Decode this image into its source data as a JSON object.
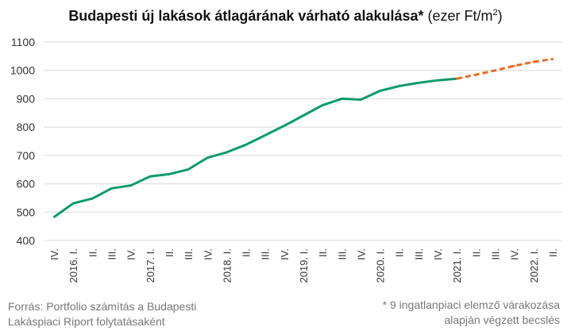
{
  "title": {
    "bold": "Budapesti új lakások átlagárának várható alakulása*",
    "unit_prefix": " (ezer Ft/m",
    "unit_sup": "2",
    "unit_suffix": ")"
  },
  "source": {
    "line1": "Forrás: Portfolio számítás a Budapesti",
    "line2": "Lakáspiaci Riport folytatásaként"
  },
  "footnote": {
    "line1": "* 9 ingatlanpiaci elemző várakozása",
    "line2": "alapján végzett becslés"
  },
  "colors": {
    "actual": "#0a9c6b",
    "forecast": "#ee6a22",
    "grid": "#d9d9d9"
  },
  "chart_data": {
    "type": "line",
    "categories": [
      "IV.",
      "2016. I.",
      "II.",
      "III.",
      "IV.",
      "2017. I.",
      "II.",
      "III.",
      "IV.",
      "2018. I.",
      "II.",
      "III.",
      "IV.",
      "2019. I.",
      "II.",
      "III.",
      "IV.",
      "2020. I.",
      "II.",
      "III.",
      "IV.",
      "2021. I.",
      "II.",
      "III.",
      "IV.",
      "2022. I.",
      "II."
    ],
    "series": [
      {
        "style": "solid",
        "values": [
          483,
          531,
          548,
          584,
          594,
          626,
          634,
          651,
          692,
          711,
          738,
          771,
          805,
          841,
          877,
          900,
          897,
          928,
          945,
          956,
          965,
          971,
          null,
          null,
          null,
          null,
          null
        ]
      },
      {
        "style": "dashed",
        "values": [
          null,
          null,
          null,
          null,
          null,
          null,
          null,
          null,
          null,
          null,
          null,
          null,
          null,
          null,
          null,
          null,
          null,
          null,
          null,
          null,
          null,
          971,
          985,
          1000,
          1016,
          1030,
          1040
        ]
      }
    ],
    "y_ticks": [
      400,
      500,
      600,
      700,
      800,
      900,
      1000,
      1100
    ],
    "ylim": [
      400,
      1100
    ],
    "grid": true,
    "legend": "none"
  }
}
